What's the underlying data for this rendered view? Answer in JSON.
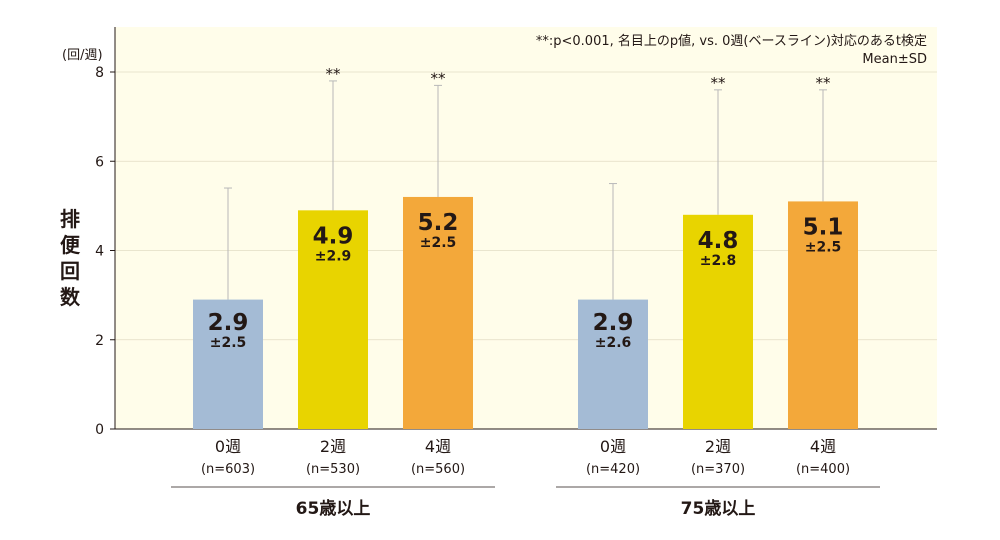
{
  "chart_data": {
    "type": "bar",
    "ylabel": "排便回数",
    "unit": "(回/週)",
    "ylim": [
      0,
      8
    ],
    "yticks": [
      "0",
      "2",
      "4",
      "6",
      "8"
    ],
    "groups": [
      {
        "name": "65歳以上",
        "bars": [
          {
            "week": "0週",
            "n": "(n=603)",
            "mean": 2.9,
            "sd": 2.5,
            "mean_label": "2.9",
            "sd_label": "±2.5",
            "sig": "",
            "color": "#a4bbd5"
          },
          {
            "week": "2週",
            "n": "(n=530)",
            "mean": 4.9,
            "sd": 2.9,
            "mean_label": "4.9",
            "sd_label": "±2.9",
            "sig": "**",
            "color": "#e8d400"
          },
          {
            "week": "4週",
            "n": "(n=560)",
            "mean": 5.2,
            "sd": 2.5,
            "mean_label": "5.2",
            "sd_label": "±2.5",
            "sig": "**",
            "color": "#f3a83a"
          }
        ]
      },
      {
        "name": "75歳以上",
        "bars": [
          {
            "week": "0週",
            "n": "(n=420)",
            "mean": 2.9,
            "sd": 2.6,
            "mean_label": "2.9",
            "sd_label": "±2.6",
            "sig": "",
            "color": "#a4bbd5"
          },
          {
            "week": "2週",
            "n": "(n=370)",
            "mean": 4.8,
            "sd": 2.8,
            "mean_label": "4.8",
            "sd_label": "±2.8",
            "sig": "**",
            "color": "#e8d400"
          },
          {
            "week": "4週",
            "n": "(n=400)",
            "mean": 5.1,
            "sd": 2.5,
            "mean_label": "5.1",
            "sd_label": "±2.5",
            "sig": "**",
            "color": "#f3a83a"
          }
        ]
      }
    ],
    "annotations": [
      "**:p<0.001, 名目上のp値, vs. 0週(ベースライン)対応のあるt検定",
      "Mean±SD"
    ],
    "plot_background": "#fffdea",
    "gridlines": true
  }
}
